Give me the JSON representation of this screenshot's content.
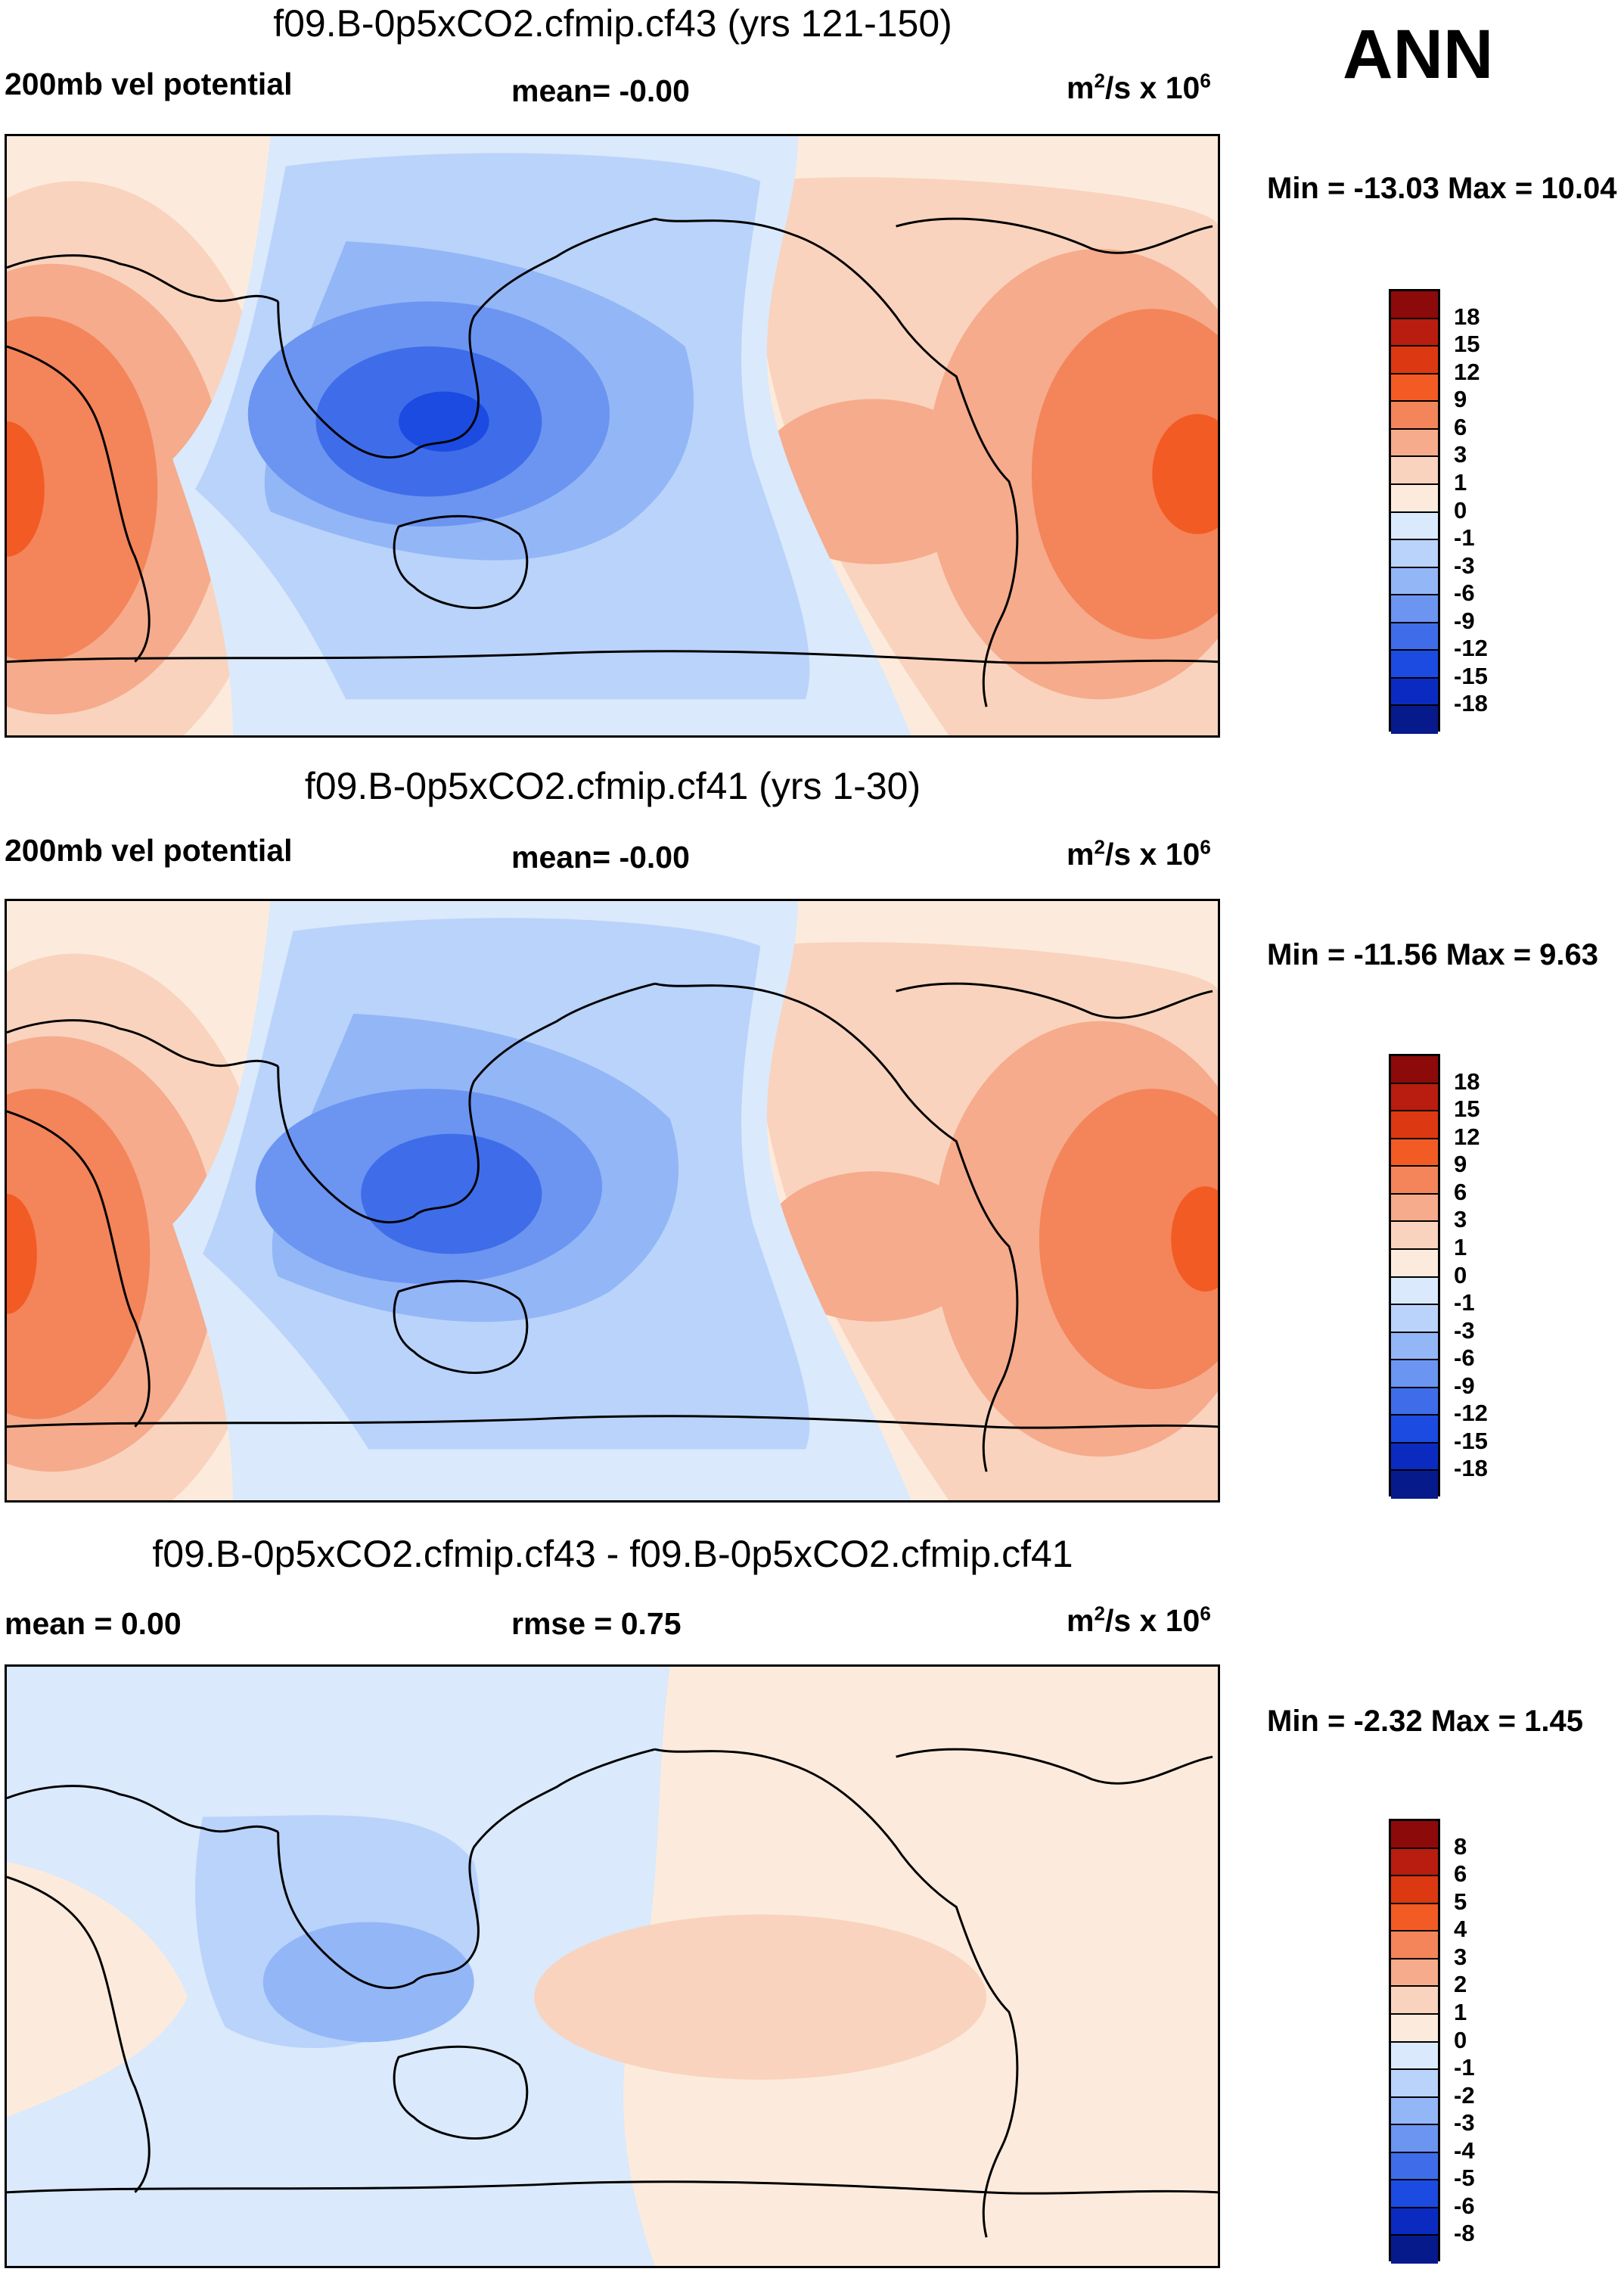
{
  "season_label": "ANN",
  "panels": [
    {
      "title": "f09.B-0p5xCO2.cfmip.cf43 (yrs 121-150)",
      "left_label": "200mb vel potential",
      "center_label": "mean=  -0.00",
      "units_base": "m",
      "units_mid": "/s x 10",
      "units_exp1": "2",
      "units_exp2": "6",
      "minmax": "Min = -13.03 Max =  10.04",
      "levels": [
        "18",
        "15",
        "12",
        "9",
        "6",
        "3",
        "1",
        "0",
        "-1",
        "-3",
        "-6",
        "-9",
        "-12",
        "-15",
        "-18"
      ]
    },
    {
      "title": "f09.B-0p5xCO2.cfmip.cf41 (yrs 1-30)",
      "left_label": "200mb vel potential",
      "center_label": "mean=  -0.00",
      "units_base": "m",
      "units_mid": "/s x 10",
      "units_exp1": "2",
      "units_exp2": "6",
      "minmax": "Min = -11.56 Max =   9.63",
      "levels": [
        "18",
        "15",
        "12",
        "9",
        "6",
        "3",
        "1",
        "0",
        "-1",
        "-3",
        "-6",
        "-9",
        "-12",
        "-15",
        "-18"
      ]
    },
    {
      "title": "f09.B-0p5xCO2.cfmip.cf43 - f09.B-0p5xCO2.cfmip.cf41",
      "left_label": "mean =   0.00",
      "center_label": "rmse =   0.75",
      "units_base": "m",
      "units_mid": "/s x 10",
      "units_exp1": "2",
      "units_exp2": "6",
      "minmax": "Min =  -2.32 Max =   1.45",
      "levels": [
        "8",
        "6",
        "5",
        "4",
        "3",
        "2",
        "1",
        "0",
        "-1",
        "-2",
        "-3",
        "-4",
        "-5",
        "-6",
        "-8"
      ]
    }
  ],
  "colorbar_colors": [
    "#8c0a0a",
    "#b81d10",
    "#dc3812",
    "#f35b24",
    "#f4845a",
    "#f5ab8c",
    "#f9d3bd",
    "#fcebdc",
    "#dae9fb",
    "#b9d3fb",
    "#93b6f6",
    "#6c95f1",
    "#3f6de9",
    "#1b4be1",
    "#0b2bc0",
    "#071a8c"
  ],
  "colorbar_colors_diff": [
    "#8c0a0a",
    "#b81d10",
    "#dc3812",
    "#f35b24",
    "#f4845a",
    "#f5ab8c",
    "#f9d3bd",
    "#fcebdc",
    "#dae9fb",
    "#b9d3fb",
    "#93b6f6",
    "#6c95f1",
    "#3f6de9",
    "#1b4be1",
    "#0b2bc0",
    "#071a8c"
  ]
}
